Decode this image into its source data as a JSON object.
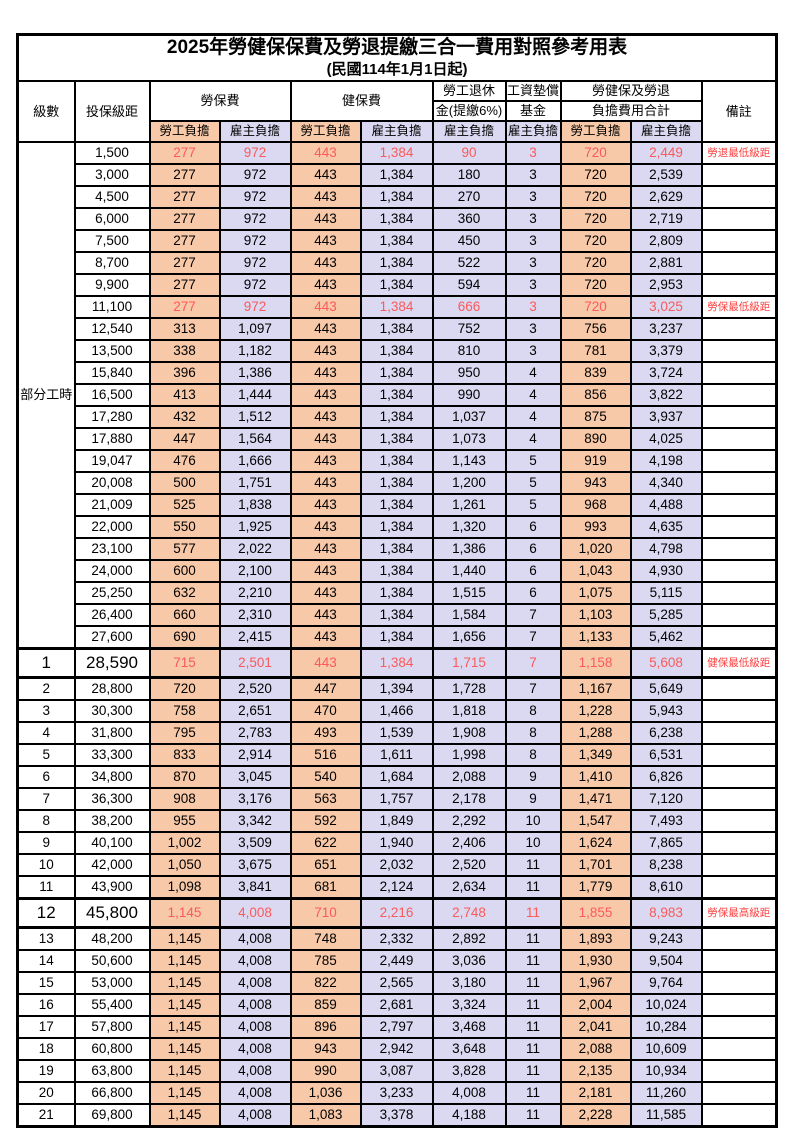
{
  "title": "2025年勞健保保費及勞退提繳三合一費用對照參考用表",
  "subtitle": "(民國114年1月1日起)",
  "part_time_label": "部分工時",
  "columns": {
    "level": "級數",
    "bracket": "投保級距",
    "labor_insurance": "勞保費",
    "health_insurance": "健保費",
    "pension_line1": "勞工退休",
    "pension_line2": "金(提繳6%)",
    "wage_fund_line1": "工資墊償",
    "wage_fund_line2": "基金",
    "total_line1": "勞健保及勞退",
    "total_line2": "負擔費用合計",
    "remarks": "備註",
    "employee": "勞工負擔",
    "employer": "雇主負擔"
  },
  "colors": {
    "employee_bg": "#F8C9A8",
    "employer_bg": "#DBD9F2",
    "highlight_value_red": "#FA5A5A",
    "remark_red": "#FF4040",
    "border": "#000000"
  },
  "chart_data": {
    "type": "table",
    "title": "2025年勞健保保費及勞退提繳三合一費用對照參考用表",
    "column_headers": [
      "級數",
      "投保級距",
      "勞保費-勞工負擔",
      "勞保費-雇主負擔",
      "健保費-勞工負擔",
      "健保費-雇主負擔",
      "勞工退休金(提繳6%)-雇主負擔",
      "工資墊償基金-雇主負擔",
      "勞健保及勞退負擔費用合計-勞工負擔",
      "勞健保及勞退負擔費用合計-雇主負擔",
      "備註"
    ],
    "rows": [
      {
        "level": "",
        "bracket": "1,500",
        "li_emp": "277",
        "li_er": "972",
        "hi_emp": "443",
        "hi_er": "1,384",
        "pension": "90",
        "fund": "3",
        "tot_emp": "720",
        "tot_er": "2,449",
        "remark": "勞退最低級距",
        "red": true,
        "special": false
      },
      {
        "level": "",
        "bracket": "3,000",
        "li_emp": "277",
        "li_er": "972",
        "hi_emp": "443",
        "hi_er": "1,384",
        "pension": "180",
        "fund": "3",
        "tot_emp": "720",
        "tot_er": "2,539",
        "remark": "",
        "red": false,
        "special": false
      },
      {
        "level": "",
        "bracket": "4,500",
        "li_emp": "277",
        "li_er": "972",
        "hi_emp": "443",
        "hi_er": "1,384",
        "pension": "270",
        "fund": "3",
        "tot_emp": "720",
        "tot_er": "2,629",
        "remark": "",
        "red": false,
        "special": false
      },
      {
        "level": "",
        "bracket": "6,000",
        "li_emp": "277",
        "li_er": "972",
        "hi_emp": "443",
        "hi_er": "1,384",
        "pension": "360",
        "fund": "3",
        "tot_emp": "720",
        "tot_er": "2,719",
        "remark": "",
        "red": false,
        "special": false
      },
      {
        "level": "",
        "bracket": "7,500",
        "li_emp": "277",
        "li_er": "972",
        "hi_emp": "443",
        "hi_er": "1,384",
        "pension": "450",
        "fund": "3",
        "tot_emp": "720",
        "tot_er": "2,809",
        "remark": "",
        "red": false,
        "special": false
      },
      {
        "level": "",
        "bracket": "8,700",
        "li_emp": "277",
        "li_er": "972",
        "hi_emp": "443",
        "hi_er": "1,384",
        "pension": "522",
        "fund": "3",
        "tot_emp": "720",
        "tot_er": "2,881",
        "remark": "",
        "red": false,
        "special": false
      },
      {
        "level": "",
        "bracket": "9,900",
        "li_emp": "277",
        "li_er": "972",
        "hi_emp": "443",
        "hi_er": "1,384",
        "pension": "594",
        "fund": "3",
        "tot_emp": "720",
        "tot_er": "2,953",
        "remark": "",
        "red": false,
        "special": false
      },
      {
        "level": "",
        "bracket": "11,100",
        "li_emp": "277",
        "li_er": "972",
        "hi_emp": "443",
        "hi_er": "1,384",
        "pension": "666",
        "fund": "3",
        "tot_emp": "720",
        "tot_er": "3,025",
        "remark": "勞保最低級距",
        "red": true,
        "special": false
      },
      {
        "level": "",
        "bracket": "12,540",
        "li_emp": "313",
        "li_er": "1,097",
        "hi_emp": "443",
        "hi_er": "1,384",
        "pension": "752",
        "fund": "3",
        "tot_emp": "756",
        "tot_er": "3,237",
        "remark": "",
        "red": false,
        "special": false
      },
      {
        "level": "",
        "bracket": "13,500",
        "li_emp": "338",
        "li_er": "1,182",
        "hi_emp": "443",
        "hi_er": "1,384",
        "pension": "810",
        "fund": "3",
        "tot_emp": "781",
        "tot_er": "3,379",
        "remark": "",
        "red": false,
        "special": false
      },
      {
        "level": "",
        "bracket": "15,840",
        "li_emp": "396",
        "li_er": "1,386",
        "hi_emp": "443",
        "hi_er": "1,384",
        "pension": "950",
        "fund": "4",
        "tot_emp": "839",
        "tot_er": "3,724",
        "remark": "",
        "red": false,
        "special": false
      },
      {
        "level": "",
        "bracket": "16,500",
        "li_emp": "413",
        "li_er": "1,444",
        "hi_emp": "443",
        "hi_er": "1,384",
        "pension": "990",
        "fund": "4",
        "tot_emp": "856",
        "tot_er": "3,822",
        "remark": "",
        "red": false,
        "special": false
      },
      {
        "level": "",
        "bracket": "17,280",
        "li_emp": "432",
        "li_er": "1,512",
        "hi_emp": "443",
        "hi_er": "1,384",
        "pension": "1,037",
        "fund": "4",
        "tot_emp": "875",
        "tot_er": "3,937",
        "remark": "",
        "red": false,
        "special": false
      },
      {
        "level": "",
        "bracket": "17,880",
        "li_emp": "447",
        "li_er": "1,564",
        "hi_emp": "443",
        "hi_er": "1,384",
        "pension": "1,073",
        "fund": "4",
        "tot_emp": "890",
        "tot_er": "4,025",
        "remark": "",
        "red": false,
        "special": false
      },
      {
        "level": "",
        "bracket": "19,047",
        "li_emp": "476",
        "li_er": "1,666",
        "hi_emp": "443",
        "hi_er": "1,384",
        "pension": "1,143",
        "fund": "5",
        "tot_emp": "919",
        "tot_er": "4,198",
        "remark": "",
        "red": false,
        "special": false
      },
      {
        "level": "",
        "bracket": "20,008",
        "li_emp": "500",
        "li_er": "1,751",
        "hi_emp": "443",
        "hi_er": "1,384",
        "pension": "1,200",
        "fund": "5",
        "tot_emp": "943",
        "tot_er": "4,340",
        "remark": "",
        "red": false,
        "special": false
      },
      {
        "level": "",
        "bracket": "21,009",
        "li_emp": "525",
        "li_er": "1,838",
        "hi_emp": "443",
        "hi_er": "1,384",
        "pension": "1,261",
        "fund": "5",
        "tot_emp": "968",
        "tot_er": "4,488",
        "remark": "",
        "red": false,
        "special": false
      },
      {
        "level": "",
        "bracket": "22,000",
        "li_emp": "550",
        "li_er": "1,925",
        "hi_emp": "443",
        "hi_er": "1,384",
        "pension": "1,320",
        "fund": "6",
        "tot_emp": "993",
        "tot_er": "4,635",
        "remark": "",
        "red": false,
        "special": false
      },
      {
        "level": "",
        "bracket": "23,100",
        "li_emp": "577",
        "li_er": "2,022",
        "hi_emp": "443",
        "hi_er": "1,384",
        "pension": "1,386",
        "fund": "6",
        "tot_emp": "1,020",
        "tot_er": "4,798",
        "remark": "",
        "red": false,
        "special": false
      },
      {
        "level": "",
        "bracket": "24,000",
        "li_emp": "600",
        "li_er": "2,100",
        "hi_emp": "443",
        "hi_er": "1,384",
        "pension": "1,440",
        "fund": "6",
        "tot_emp": "1,043",
        "tot_er": "4,930",
        "remark": "",
        "red": false,
        "special": false
      },
      {
        "level": "",
        "bracket": "25,250",
        "li_emp": "632",
        "li_er": "2,210",
        "hi_emp": "443",
        "hi_er": "1,384",
        "pension": "1,515",
        "fund": "6",
        "tot_emp": "1,075",
        "tot_er": "5,115",
        "remark": "",
        "red": false,
        "special": false
      },
      {
        "level": "",
        "bracket": "26,400",
        "li_emp": "660",
        "li_er": "2,310",
        "hi_emp": "443",
        "hi_er": "1,384",
        "pension": "1,584",
        "fund": "7",
        "tot_emp": "1,103",
        "tot_er": "5,285",
        "remark": "",
        "red": false,
        "special": false
      },
      {
        "level": "",
        "bracket": "27,600",
        "li_emp": "690",
        "li_er": "2,415",
        "hi_emp": "443",
        "hi_er": "1,384",
        "pension": "1,656",
        "fund": "7",
        "tot_emp": "1,133",
        "tot_er": "5,462",
        "remark": "",
        "red": false,
        "special": false
      },
      {
        "level": "1",
        "bracket": "28,590",
        "li_emp": "715",
        "li_er": "2,501",
        "hi_emp": "443",
        "hi_er": "1,384",
        "pension": "1,715",
        "fund": "7",
        "tot_emp": "1,158",
        "tot_er": "5,608",
        "remark": "健保最低級距",
        "red": true,
        "special": true
      },
      {
        "level": "2",
        "bracket": "28,800",
        "li_emp": "720",
        "li_er": "2,520",
        "hi_emp": "447",
        "hi_er": "1,394",
        "pension": "1,728",
        "fund": "7",
        "tot_emp": "1,167",
        "tot_er": "5,649",
        "remark": "",
        "red": false,
        "special": false
      },
      {
        "level": "3",
        "bracket": "30,300",
        "li_emp": "758",
        "li_er": "2,651",
        "hi_emp": "470",
        "hi_er": "1,466",
        "pension": "1,818",
        "fund": "8",
        "tot_emp": "1,228",
        "tot_er": "5,943",
        "remark": "",
        "red": false,
        "special": false
      },
      {
        "level": "4",
        "bracket": "31,800",
        "li_emp": "795",
        "li_er": "2,783",
        "hi_emp": "493",
        "hi_er": "1,539",
        "pension": "1,908",
        "fund": "8",
        "tot_emp": "1,288",
        "tot_er": "6,238",
        "remark": "",
        "red": false,
        "special": false
      },
      {
        "level": "5",
        "bracket": "33,300",
        "li_emp": "833",
        "li_er": "2,914",
        "hi_emp": "516",
        "hi_er": "1,611",
        "pension": "1,998",
        "fund": "8",
        "tot_emp": "1,349",
        "tot_er": "6,531",
        "remark": "",
        "red": false,
        "special": false
      },
      {
        "level": "6",
        "bracket": "34,800",
        "li_emp": "870",
        "li_er": "3,045",
        "hi_emp": "540",
        "hi_er": "1,684",
        "pension": "2,088",
        "fund": "9",
        "tot_emp": "1,410",
        "tot_er": "6,826",
        "remark": "",
        "red": false,
        "special": false
      },
      {
        "level": "7",
        "bracket": "36,300",
        "li_emp": "908",
        "li_er": "3,176",
        "hi_emp": "563",
        "hi_er": "1,757",
        "pension": "2,178",
        "fund": "9",
        "tot_emp": "1,471",
        "tot_er": "7,120",
        "remark": "",
        "red": false,
        "special": false
      },
      {
        "level": "8",
        "bracket": "38,200",
        "li_emp": "955",
        "li_er": "3,342",
        "hi_emp": "592",
        "hi_er": "1,849",
        "pension": "2,292",
        "fund": "10",
        "tot_emp": "1,547",
        "tot_er": "7,493",
        "remark": "",
        "red": false,
        "special": false
      },
      {
        "level": "9",
        "bracket": "40,100",
        "li_emp": "1,002",
        "li_er": "3,509",
        "hi_emp": "622",
        "hi_er": "1,940",
        "pension": "2,406",
        "fund": "10",
        "tot_emp": "1,624",
        "tot_er": "7,865",
        "remark": "",
        "red": false,
        "special": false
      },
      {
        "level": "10",
        "bracket": "42,000",
        "li_emp": "1,050",
        "li_er": "3,675",
        "hi_emp": "651",
        "hi_er": "2,032",
        "pension": "2,520",
        "fund": "11",
        "tot_emp": "1,701",
        "tot_er": "8,238",
        "remark": "",
        "red": false,
        "special": false
      },
      {
        "level": "11",
        "bracket": "43,900",
        "li_emp": "1,098",
        "li_er": "3,841",
        "hi_emp": "681",
        "hi_er": "2,124",
        "pension": "2,634",
        "fund": "11",
        "tot_emp": "1,779",
        "tot_er": "8,610",
        "remark": "",
        "red": false,
        "special": false
      },
      {
        "level": "12",
        "bracket": "45,800",
        "li_emp": "1,145",
        "li_er": "4,008",
        "hi_emp": "710",
        "hi_er": "2,216",
        "pension": "2,748",
        "fund": "11",
        "tot_emp": "1,855",
        "tot_er": "8,983",
        "remark": "勞保最高級距",
        "red": true,
        "special": true
      },
      {
        "level": "13",
        "bracket": "48,200",
        "li_emp": "1,145",
        "li_er": "4,008",
        "hi_emp": "748",
        "hi_er": "2,332",
        "pension": "2,892",
        "fund": "11",
        "tot_emp": "1,893",
        "tot_er": "9,243",
        "remark": "",
        "red": false,
        "special": false
      },
      {
        "level": "14",
        "bracket": "50,600",
        "li_emp": "1,145",
        "li_er": "4,008",
        "hi_emp": "785",
        "hi_er": "2,449",
        "pension": "3,036",
        "fund": "11",
        "tot_emp": "1,930",
        "tot_er": "9,504",
        "remark": "",
        "red": false,
        "special": false
      },
      {
        "level": "15",
        "bracket": "53,000",
        "li_emp": "1,145",
        "li_er": "4,008",
        "hi_emp": "822",
        "hi_er": "2,565",
        "pension": "3,180",
        "fund": "11",
        "tot_emp": "1,967",
        "tot_er": "9,764",
        "remark": "",
        "red": false,
        "special": false
      },
      {
        "level": "16",
        "bracket": "55,400",
        "li_emp": "1,145",
        "li_er": "4,008",
        "hi_emp": "859",
        "hi_er": "2,681",
        "pension": "3,324",
        "fund": "11",
        "tot_emp": "2,004",
        "tot_er": "10,024",
        "remark": "",
        "red": false,
        "special": false
      },
      {
        "level": "17",
        "bracket": "57,800",
        "li_emp": "1,145",
        "li_er": "4,008",
        "hi_emp": "896",
        "hi_er": "2,797",
        "pension": "3,468",
        "fund": "11",
        "tot_emp": "2,041",
        "tot_er": "10,284",
        "remark": "",
        "red": false,
        "special": false
      },
      {
        "level": "18",
        "bracket": "60,800",
        "li_emp": "1,145",
        "li_er": "4,008",
        "hi_emp": "943",
        "hi_er": "2,942",
        "pension": "3,648",
        "fund": "11",
        "tot_emp": "2,088",
        "tot_er": "10,609",
        "remark": "",
        "red": false,
        "special": false
      },
      {
        "level": "19",
        "bracket": "63,800",
        "li_emp": "1,145",
        "li_er": "4,008",
        "hi_emp": "990",
        "hi_er": "3,087",
        "pension": "3,828",
        "fund": "11",
        "tot_emp": "2,135",
        "tot_er": "10,934",
        "remark": "",
        "red": false,
        "special": false
      },
      {
        "level": "20",
        "bracket": "66,800",
        "li_emp": "1,145",
        "li_er": "4,008",
        "hi_emp": "1,036",
        "hi_er": "3,233",
        "pension": "4,008",
        "fund": "11",
        "tot_emp": "2,181",
        "tot_er": "11,260",
        "remark": "",
        "red": false,
        "special": false
      },
      {
        "level": "21",
        "bracket": "69,800",
        "li_emp": "1,145",
        "li_er": "4,008",
        "hi_emp": "1,083",
        "hi_er": "3,378",
        "pension": "4,188",
        "fund": "11",
        "tot_emp": "2,228",
        "tot_er": "11,585",
        "remark": "",
        "red": false,
        "special": false
      }
    ]
  }
}
